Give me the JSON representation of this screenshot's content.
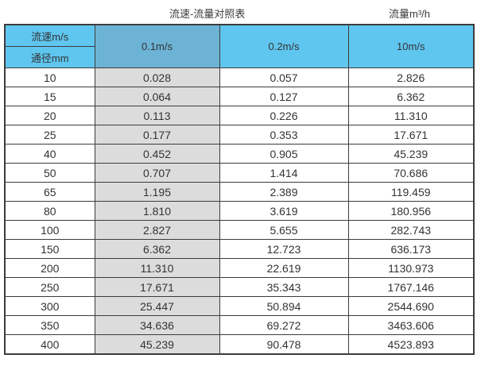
{
  "chart_data": {
    "type": "table",
    "title": "流速-流量对照表",
    "unit_label": "流量m³/h",
    "corner": {
      "top": "流速m/s",
      "bottom": "通径mm"
    },
    "velocity_columns": [
      "0.1m/s",
      "0.2m/s",
      "10m/s"
    ],
    "rows": [
      [
        "10",
        "0.028",
        "0.057",
        "2.826"
      ],
      [
        "15",
        "0.064",
        "0.127",
        "6.362"
      ],
      [
        "20",
        "0.113",
        "0.226",
        "11.310"
      ],
      [
        "25",
        "0.177",
        "0.353",
        "17.671"
      ],
      [
        "40",
        "0.452",
        "0.905",
        "45.239"
      ],
      [
        "50",
        "0.707",
        "1.414",
        "70.686"
      ],
      [
        "65",
        "1.195",
        "2.389",
        "119.459"
      ],
      [
        "80",
        "1.810",
        "3.619",
        "180.956"
      ],
      [
        "100",
        "2.827",
        "5.655",
        "282.743"
      ],
      [
        "150",
        "6.362",
        "12.723",
        "636.173"
      ],
      [
        "200",
        "11.310",
        "22.619",
        "1130.973"
      ],
      [
        "250",
        "17.671",
        "35.343",
        "1767.146"
      ],
      [
        "300",
        "25.447",
        "50.894",
        "2544.690"
      ],
      [
        "350",
        "34.636",
        "69.272",
        "3463.606"
      ],
      [
        "400",
        "45.239",
        "90.478",
        "4523.893"
      ]
    ],
    "layout": {
      "title_position": "top-center-left",
      "unit_label_position": "top-right",
      "grid": "on"
    }
  },
  "colors": {
    "header_blue": "#5fc6f0",
    "header_steel_blue": "#6cb3d6",
    "column_gray": "#dcdcdc",
    "border": "#3c3c3c",
    "text": "#333333"
  }
}
